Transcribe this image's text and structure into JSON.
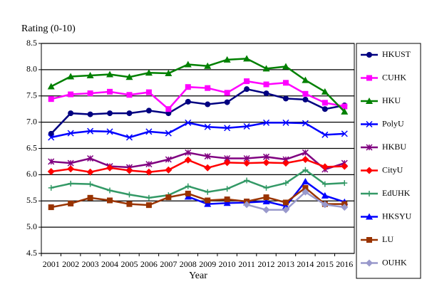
{
  "chart_data": {
    "type": "line",
    "title": "Rating (0-10)",
    "x_label": "Year",
    "categories": [
      "2001",
      "2002",
      "2003",
      "2004",
      "2005",
      "2006",
      "2007",
      "2008",
      "2009",
      "2010",
      "2011",
      "2012",
      "2013",
      "2014",
      "2015",
      "2016"
    ],
    "ylim": [
      4.5,
      8.5
    ],
    "yticks": [
      {
        "value": 4.5,
        "label": "4.5"
      },
      {
        "value": 5,
        "label": "5.0"
      },
      5.5,
      {
        "value": 6,
        "label": "6.0"
      },
      6.5,
      {
        "value": 7,
        "label": "7.0"
      },
      7.5,
      {
        "value": 8,
        "label": "8.0"
      },
      8.5
    ],
    "grid": true,
    "legend": "right",
    "series": [
      {
        "name": "HKUST",
        "color": "#000080",
        "marker": "circle",
        "values": [
          6.78,
          7.17,
          7.15,
          7.17,
          7.17,
          7.22,
          7.17,
          7.39,
          7.34,
          7.38,
          7.63,
          7.55,
          7.45,
          7.43,
          7.25,
          7.32
        ]
      },
      {
        "name": "CUHK",
        "color": "#ff00ff",
        "marker": "square",
        "values": [
          7.44,
          7.53,
          7.55,
          7.58,
          7.52,
          7.57,
          7.25,
          7.67,
          7.65,
          7.56,
          7.78,
          7.72,
          7.75,
          7.54,
          7.37,
          7.3
        ]
      },
      {
        "name": "HKU",
        "color": "#008000",
        "marker": "triangle",
        "values": [
          7.68,
          7.87,
          7.89,
          7.91,
          7.86,
          7.94,
          7.93,
          8.1,
          8.07,
          8.19,
          8.21,
          8.02,
          8.06,
          7.8,
          7.58,
          7.2
        ]
      },
      {
        "name": "PolyU",
        "color": "#0000ff",
        "marker": "x",
        "values": [
          6.71,
          6.79,
          6.83,
          6.82,
          6.71,
          6.82,
          6.79,
          6.99,
          6.91,
          6.89,
          6.92,
          6.99,
          6.99,
          6.98,
          6.76,
          6.78
        ]
      },
      {
        "name": "HKBU",
        "color": "#800080",
        "marker": "star",
        "values": [
          6.25,
          6.22,
          6.31,
          6.16,
          6.14,
          6.2,
          6.29,
          6.42,
          6.35,
          6.31,
          6.31,
          6.34,
          6.29,
          6.42,
          6.1,
          6.22
        ]
      },
      {
        "name": "CityU",
        "color": "#ff0000",
        "marker": "diamond",
        "values": [
          6.06,
          6.11,
          6.05,
          6.13,
          6.08,
          6.05,
          6.09,
          6.28,
          6.13,
          6.23,
          6.22,
          6.23,
          6.22,
          6.29,
          6.15,
          6.16
        ]
      },
      {
        "name": "EdUHK",
        "color": "#339966",
        "marker": "plus",
        "values": [
          5.75,
          5.83,
          5.82,
          5.7,
          5.62,
          5.56,
          5.61,
          5.78,
          5.67,
          5.73,
          5.89,
          5.75,
          5.84,
          6.09,
          5.82,
          5.84
        ]
      },
      {
        "name": "HKSYU",
        "color": "#0000ff",
        "marker": "triangle",
        "values": [
          null,
          null,
          null,
          null,
          null,
          null,
          null,
          5.58,
          5.44,
          5.46,
          5.47,
          5.49,
          5.4,
          5.87,
          5.6,
          5.48
        ]
      },
      {
        "name": "LU",
        "color": "#993300",
        "marker": "square",
        "values": [
          5.38,
          5.45,
          5.56,
          5.51,
          5.44,
          5.42,
          5.57,
          5.64,
          5.51,
          5.53,
          5.49,
          5.57,
          5.47,
          5.75,
          5.44,
          5.44
        ]
      },
      {
        "name": "OUHK",
        "color": "#9999cc",
        "marker": "diamond",
        "values": [
          null,
          null,
          null,
          null,
          null,
          null,
          null,
          null,
          null,
          null,
          5.43,
          5.33,
          5.33,
          5.67,
          5.43,
          5.38
        ]
      }
    ]
  }
}
